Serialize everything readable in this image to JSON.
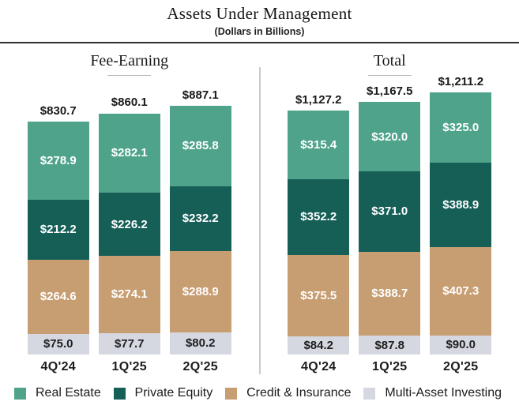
{
  "header": {
    "title": "Assets Under Management",
    "subtitle": "(Dollars in Billions)"
  },
  "colors": {
    "real_estate": "#4FA38B",
    "private_equity": "#155F57",
    "credit_insurance": "#C79D72",
    "multi_asset": "#D5D8E0"
  },
  "chart_data": [
    {
      "type": "bar",
      "stacked": true,
      "title": "Fee-Earning",
      "categories": [
        "4Q'24",
        "1Q'25",
        "2Q'25"
      ],
      "totals_numeric": [
        830.7,
        860.1,
        887.1
      ],
      "totals": [
        "$830.7",
        "$860.1",
        "$887.1"
      ],
      "legend_position": "bottom",
      "series": [
        {
          "name": "Real Estate",
          "color": "#4FA38B",
          "label_color": "#ffffff",
          "values": [
            278.9,
            282.1,
            285.8
          ],
          "labels": [
            "$278.9",
            "$282.1",
            "$285.8"
          ]
        },
        {
          "name": "Private Equity",
          "color": "#155F57",
          "label_color": "#ffffff",
          "values": [
            212.2,
            226.2,
            232.2
          ],
          "labels": [
            "$212.2",
            "$226.2",
            "$232.2"
          ]
        },
        {
          "name": "Credit & Insurance",
          "color": "#C79D72",
          "label_color": "#ffffff",
          "values": [
            264.6,
            274.1,
            288.9
          ],
          "labels": [
            "$264.6",
            "$274.1",
            "$288.9"
          ]
        },
        {
          "name": "Multi-Asset Investing",
          "color": "#D5D8E0",
          "label_color": "#1f1f1f",
          "values": [
            75.0,
            77.7,
            80.2
          ],
          "labels": [
            "$75.0",
            "$77.7",
            "$80.2"
          ]
        }
      ]
    },
    {
      "type": "bar",
      "stacked": true,
      "title": "Total",
      "categories": [
        "4Q'24",
        "1Q'25",
        "2Q'25"
      ],
      "totals_numeric": [
        1127.2,
        1167.5,
        1211.2
      ],
      "totals": [
        "$1,127.2",
        "$1,167.5",
        "$1,211.2"
      ],
      "legend_position": "bottom",
      "series": [
        {
          "name": "Real Estate",
          "color": "#4FA38B",
          "label_color": "#ffffff",
          "values": [
            315.4,
            320.0,
            325.0
          ],
          "labels": [
            "$315.4",
            "$320.0",
            "$325.0"
          ]
        },
        {
          "name": "Private Equity",
          "color": "#155F57",
          "label_color": "#ffffff",
          "values": [
            352.2,
            371.0,
            388.9
          ],
          "labels": [
            "$352.2",
            "$371.0",
            "$388.9"
          ]
        },
        {
          "name": "Credit & Insurance",
          "color": "#C79D72",
          "label_color": "#ffffff",
          "values": [
            375.5,
            388.7,
            407.3
          ],
          "labels": [
            "$375.5",
            "$388.7",
            "$407.3"
          ]
        },
        {
          "name": "Multi-Asset Investing",
          "color": "#D5D8E0",
          "label_color": "#1f1f1f",
          "values": [
            84.2,
            87.8,
            90.0
          ],
          "labels": [
            "$84.2",
            "$87.8",
            "$90.0"
          ]
        }
      ]
    }
  ],
  "legend": {
    "items": [
      {
        "label": "Real Estate",
        "color": "#4FA38B"
      },
      {
        "label": "Private Equity",
        "color": "#155F57"
      },
      {
        "label": "Credit & Insurance",
        "color": "#C79D72"
      },
      {
        "label": "Multi-Asset Investing",
        "color": "#D5D8E0"
      }
    ]
  }
}
